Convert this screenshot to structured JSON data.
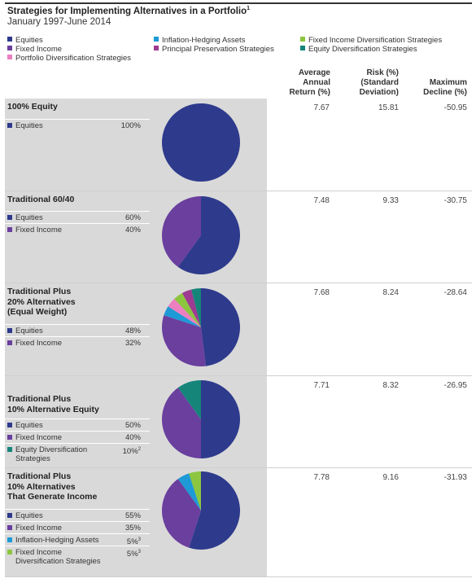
{
  "header": {
    "title": "Strategies for Implementing Alternatives in a Portfolio",
    "title_footnote": "1",
    "subtitle": "January 1997-June 2014"
  },
  "legend": [
    {
      "label": "Equities",
      "color": "#2e3a8c"
    },
    {
      "label": "Inflation-Hedging Assets",
      "color": "#1e9ad6"
    },
    {
      "label": "Fixed Income Diversification Strategies",
      "color": "#8cc63f"
    },
    {
      "label": "Fixed Income",
      "color": "#6a3f9e"
    },
    {
      "label": "Principal Preservation Strategies",
      "color": "#9e3a91"
    },
    {
      "label": "Equity Diversification Strategies",
      "color": "#15857a"
    },
    {
      "label": "Portfolio Diversification Strategies",
      "color": "#ec7fc0"
    }
  ],
  "columns": {
    "return": [
      "Average",
      "Annual",
      "Return (%)"
    ],
    "risk": [
      "Risk (%)",
      "(Standard",
      "Deviation)"
    ],
    "decline": [
      "Maximum",
      "Decline (%)"
    ]
  },
  "chart_data": {
    "type": "pie",
    "title": "Strategies for Implementing Alternatives in a Portfolio",
    "subtitle": "January 1997-June 2014",
    "portfolios": [
      {
        "title": [
          "100% Equity"
        ],
        "allocations": [
          {
            "label": [
              "Equities"
            ],
            "value": "100%",
            "color": "#2e3a8c"
          }
        ],
        "slices": [
          {
            "name": "Equities",
            "value": 100,
            "color": "#2e3a8c"
          }
        ],
        "avg_annual_return": "7.67",
        "risk": "15.81",
        "max_decline": "-50.95"
      },
      {
        "title": [
          "Traditional 60/40"
        ],
        "allocations": [
          {
            "label": [
              "Equities"
            ],
            "value": "60%",
            "color": "#2e3a8c"
          },
          {
            "label": [
              "Fixed Income"
            ],
            "value": "40%",
            "color": "#6a3f9e"
          }
        ],
        "slices": [
          {
            "name": "Equities",
            "value": 60,
            "color": "#2e3a8c"
          },
          {
            "name": "Fixed Income",
            "value": 40,
            "color": "#6a3f9e"
          }
        ],
        "avg_annual_return": "7.48",
        "risk": "9.33",
        "max_decline": "-30.75"
      },
      {
        "title": [
          "Traditional Plus",
          "20% Alternatives",
          "(Equal Weight)"
        ],
        "allocations": [
          {
            "label": [
              "Equities"
            ],
            "value": "48%",
            "color": "#2e3a8c"
          },
          {
            "label": [
              "Fixed Income"
            ],
            "value": "32%",
            "color": "#6a3f9e"
          }
        ],
        "slices": [
          {
            "name": "Equities",
            "value": 48,
            "color": "#2e3a8c"
          },
          {
            "name": "Fixed Income",
            "value": 32,
            "color": "#6a3f9e"
          },
          {
            "name": "Inflation-Hedging Assets",
            "value": 4,
            "color": "#1e9ad6"
          },
          {
            "name": "Portfolio Diversification Strategies",
            "value": 4,
            "color": "#ec7fc0"
          },
          {
            "name": "Fixed Income Diversification Strategies",
            "value": 4,
            "color": "#8cc63f"
          },
          {
            "name": "Principal Preservation Strategies",
            "value": 4,
            "color": "#9e3a91"
          },
          {
            "name": "Equity Diversification Strategies",
            "value": 4,
            "color": "#15857a"
          }
        ],
        "avg_annual_return": "7.68",
        "risk": "8.24",
        "max_decline": "-28.64"
      },
      {
        "title": [
          "Traditional Plus",
          "10% Alternative Equity"
        ],
        "allocations": [
          {
            "label": [
              "Equities"
            ],
            "value": "50%",
            "color": "#2e3a8c"
          },
          {
            "label": [
              "Fixed Income"
            ],
            "value": "40%",
            "color": "#6a3f9e"
          },
          {
            "label": [
              "Equity Diversification",
              "Strategies"
            ],
            "value": "10%",
            "sup": "2",
            "color": "#15857a"
          }
        ],
        "slices": [
          {
            "name": "Equities",
            "value": 50,
            "color": "#2e3a8c"
          },
          {
            "name": "Fixed Income",
            "value": 40,
            "color": "#6a3f9e"
          },
          {
            "name": "Equity Diversification Strategies",
            "value": 10,
            "color": "#15857a"
          }
        ],
        "avg_annual_return": "7.71",
        "risk": "8.32",
        "max_decline": "-26.95"
      },
      {
        "title": [
          "Traditional Plus",
          "10% Alternatives",
          "That Generate Income"
        ],
        "allocations": [
          {
            "label": [
              "Equities"
            ],
            "value": "55%",
            "color": "#2e3a8c"
          },
          {
            "label": [
              "Fixed Income"
            ],
            "value": "35%",
            "color": "#6a3f9e"
          },
          {
            "label": [
              "Inflation-Hedging Assets"
            ],
            "value": "5%",
            "sup": "3",
            "color": "#1e9ad6"
          },
          {
            "label": [
              "Fixed Income",
              "Diversification Strategies"
            ],
            "value": "5%",
            "sup": "3",
            "color": "#8cc63f"
          }
        ],
        "slices": [
          {
            "name": "Equities",
            "value": 55,
            "color": "#2e3a8c"
          },
          {
            "name": "Fixed Income",
            "value": 35,
            "color": "#6a3f9e"
          },
          {
            "name": "Inflation-Hedging Assets",
            "value": 5,
            "color": "#1e9ad6"
          },
          {
            "name": "Fixed Income Diversification Strategies",
            "value": 5,
            "color": "#8cc63f"
          }
        ],
        "avg_annual_return": "7.78",
        "risk": "9.16",
        "max_decline": "-31.93"
      }
    ]
  }
}
